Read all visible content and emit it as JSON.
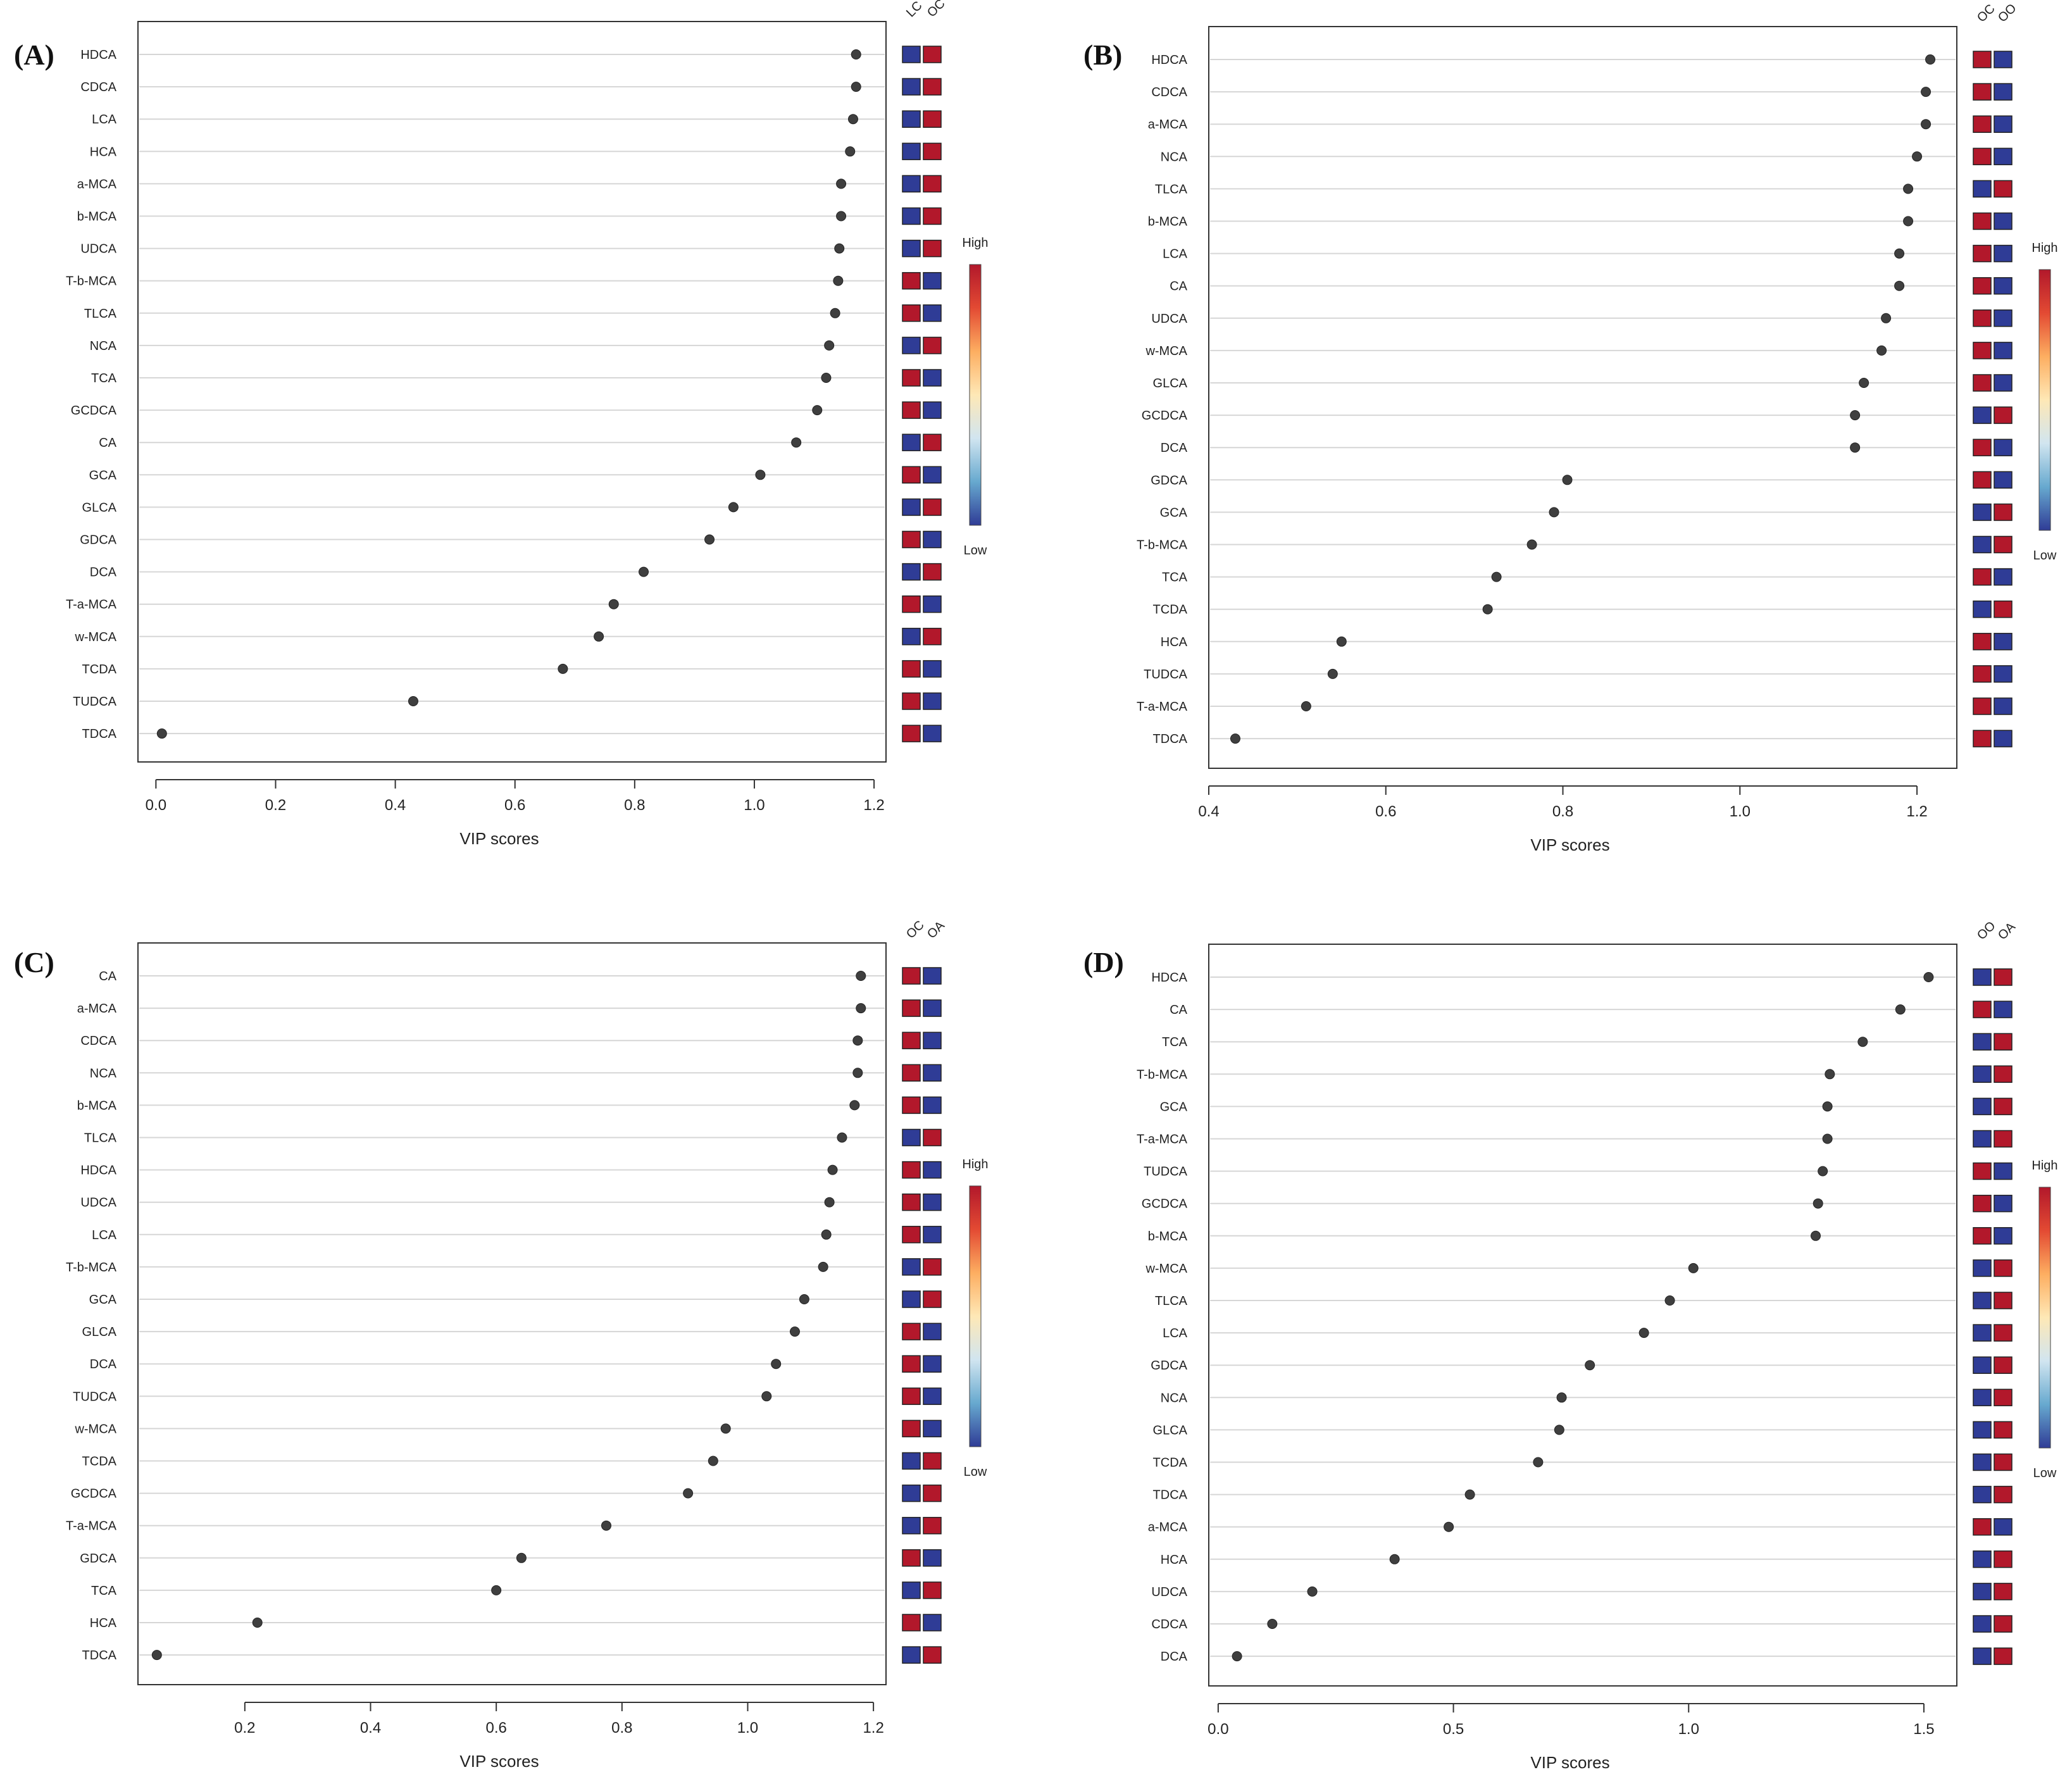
{
  "figure": {
    "x_axis_label": "VIP scores"
  },
  "colors": {
    "high": "#b2182b",
    "low": "#2f3c96",
    "point": "#3f3f3f",
    "grid": "#d6d6d6",
    "frame": "#333333"
  },
  "colorbar": {
    "high_label": "High",
    "low_label": "Low",
    "stops": [
      "#b2182b",
      "#e34a33",
      "#fdae61",
      "#fee8b6",
      "#d1e5f0",
      "#67a9cf",
      "#2f3c96"
    ]
  },
  "chart_data": [
    {
      "panel_label": "(A)",
      "type": "dot",
      "xlabel": "VIP scores",
      "xlim": [
        -0.03,
        1.22
      ],
      "xticks": [
        0.0,
        0.2,
        0.4,
        0.6,
        0.8,
        1.0,
        1.2
      ],
      "tick_labels": [
        "0.0",
        "0.2",
        "0.4",
        "0.6",
        "0.8",
        "1.0",
        "1.2"
      ],
      "groups": [
        "LC",
        "OC"
      ],
      "categories": [
        "HDCA",
        "CDCA",
        "LCA",
        "HCA",
        "a-MCA",
        "b-MCA",
        "UDCA",
        "T-b-MCA",
        "TLCA",
        "NCA",
        "TCA",
        "GCDCA",
        "CA",
        "GCA",
        "GLCA",
        "GDCA",
        "DCA",
        "T-a-MCA",
        "w-MCA",
        "TCDA",
        "TUDCA",
        "TDCA"
      ],
      "values": [
        1.17,
        1.17,
        1.165,
        1.16,
        1.145,
        1.145,
        1.142,
        1.14,
        1.135,
        1.125,
        1.12,
        1.105,
        1.07,
        1.01,
        0.965,
        0.925,
        0.815,
        0.765,
        0.74,
        0.68,
        0.43,
        0.01
      ],
      "heat": [
        [
          "L",
          "H"
        ],
        [
          "L",
          "H"
        ],
        [
          "L",
          "H"
        ],
        [
          "L",
          "H"
        ],
        [
          "L",
          "H"
        ],
        [
          "L",
          "H"
        ],
        [
          "L",
          "H"
        ],
        [
          "H",
          "L"
        ],
        [
          "H",
          "L"
        ],
        [
          "L",
          "H"
        ],
        [
          "H",
          "L"
        ],
        [
          "H",
          "L"
        ],
        [
          "L",
          "H"
        ],
        [
          "H",
          "L"
        ],
        [
          "L",
          "H"
        ],
        [
          "H",
          "L"
        ],
        [
          "L",
          "H"
        ],
        [
          "H",
          "L"
        ],
        [
          "L",
          "H"
        ],
        [
          "H",
          "L"
        ],
        [
          "H",
          "L"
        ],
        [
          "H",
          "L"
        ]
      ]
    },
    {
      "panel_label": "(B)",
      "type": "dot",
      "xlabel": "VIP scores",
      "xlim": [
        0.4,
        1.245
      ],
      "xticks": [
        0.4,
        0.6,
        0.8,
        1.0,
        1.2
      ],
      "tick_labels": [
        "0.4",
        "0.6",
        "0.8",
        "1.0",
        "1.2"
      ],
      "groups": [
        "OC",
        "OO"
      ],
      "categories": [
        "HDCA",
        "CDCA",
        "a-MCA",
        "NCA",
        "TLCA",
        "b-MCA",
        "LCA",
        "CA",
        "UDCA",
        "w-MCA",
        "GLCA",
        "GCDCA",
        "DCA",
        "GDCA",
        "GCA",
        "T-b-MCA",
        "TCA",
        "TCDA",
        "HCA",
        "TUDCA",
        "T-a-MCA",
        "TDCA"
      ],
      "values": [
        1.215,
        1.21,
        1.21,
        1.2,
        1.19,
        1.19,
        1.18,
        1.18,
        1.165,
        1.16,
        1.14,
        1.13,
        1.13,
        0.805,
        0.79,
        0.765,
        0.725,
        0.715,
        0.55,
        0.54,
        0.51,
        0.43
      ],
      "heat": [
        [
          "H",
          "L"
        ],
        [
          "H",
          "L"
        ],
        [
          "H",
          "L"
        ],
        [
          "H",
          "L"
        ],
        [
          "L",
          "H"
        ],
        [
          "H",
          "L"
        ],
        [
          "H",
          "L"
        ],
        [
          "H",
          "L"
        ],
        [
          "H",
          "L"
        ],
        [
          "H",
          "L"
        ],
        [
          "H",
          "L"
        ],
        [
          "L",
          "H"
        ],
        [
          "H",
          "L"
        ],
        [
          "H",
          "L"
        ],
        [
          "L",
          "H"
        ],
        [
          "L",
          "H"
        ],
        [
          "H",
          "L"
        ],
        [
          "L",
          "H"
        ],
        [
          "H",
          "L"
        ],
        [
          "H",
          "L"
        ],
        [
          "H",
          "L"
        ],
        [
          "H",
          "L"
        ]
      ]
    },
    {
      "panel_label": "(C)",
      "type": "dot",
      "xlabel": "VIP scores",
      "xlim": [
        0.03,
        1.22
      ],
      "xticks": [
        0.2,
        0.4,
        0.6,
        0.8,
        1.0,
        1.2
      ],
      "tick_labels": [
        "0.2",
        "0.4",
        "0.6",
        "0.8",
        "1.0",
        "1.2"
      ],
      "groups": [
        "OC",
        "OA"
      ],
      "categories": [
        "CA",
        "a-MCA",
        "CDCA",
        "NCA",
        "b-MCA",
        "TLCA",
        "HDCA",
        "UDCA",
        "LCA",
        "T-b-MCA",
        "GCA",
        "GLCA",
        "DCA",
        "TUDCA",
        "w-MCA",
        "TCDA",
        "GCDCA",
        "T-a-MCA",
        "GDCA",
        "TCA",
        "HCA",
        "TDCA"
      ],
      "values": [
        1.18,
        1.18,
        1.175,
        1.175,
        1.17,
        1.15,
        1.135,
        1.13,
        1.125,
        1.12,
        1.09,
        1.075,
        1.045,
        1.03,
        0.965,
        0.945,
        0.905,
        0.775,
        0.64,
        0.6,
        0.22,
        0.06
      ],
      "heat": [
        [
          "H",
          "L"
        ],
        [
          "H",
          "L"
        ],
        [
          "H",
          "L"
        ],
        [
          "H",
          "L"
        ],
        [
          "H",
          "L"
        ],
        [
          "L",
          "H"
        ],
        [
          "H",
          "L"
        ],
        [
          "H",
          "L"
        ],
        [
          "H",
          "L"
        ],
        [
          "L",
          "H"
        ],
        [
          "L",
          "H"
        ],
        [
          "H",
          "L"
        ],
        [
          "H",
          "L"
        ],
        [
          "H",
          "L"
        ],
        [
          "H",
          "L"
        ],
        [
          "L",
          "H"
        ],
        [
          "L",
          "H"
        ],
        [
          "L",
          "H"
        ],
        [
          "H",
          "L"
        ],
        [
          "L",
          "H"
        ],
        [
          "H",
          "L"
        ],
        [
          "L",
          "H"
        ]
      ]
    },
    {
      "panel_label": "(D)",
      "type": "dot",
      "xlabel": "VIP scores",
      "xlim": [
        -0.02,
        1.57
      ],
      "xticks": [
        0.0,
        0.5,
        1.0,
        1.5
      ],
      "tick_labels": [
        "0.0",
        "0.5",
        "1.0",
        "1.5"
      ],
      "groups": [
        "OO",
        "OA"
      ],
      "categories": [
        "HDCA",
        "CA",
        "TCA",
        "T-b-MCA",
        "GCA",
        "T-a-MCA",
        "TUDCA",
        "GCDCA",
        "b-MCA",
        "w-MCA",
        "TLCA",
        "LCA",
        "GDCA",
        "NCA",
        "GLCA",
        "TCDA",
        "TDCA",
        "a-MCA",
        "HCA",
        "UDCA",
        "CDCA",
        "DCA"
      ],
      "values": [
        1.51,
        1.45,
        1.37,
        1.3,
        1.295,
        1.295,
        1.285,
        1.275,
        1.27,
        1.01,
        0.96,
        0.905,
        0.79,
        0.73,
        0.725,
        0.68,
        0.535,
        0.49,
        0.375,
        0.2,
        0.115,
        0.04
      ],
      "heat": [
        [
          "L",
          "H"
        ],
        [
          "H",
          "L"
        ],
        [
          "L",
          "H"
        ],
        [
          "L",
          "H"
        ],
        [
          "L",
          "H"
        ],
        [
          "L",
          "H"
        ],
        [
          "H",
          "L"
        ],
        [
          "H",
          "L"
        ],
        [
          "H",
          "L"
        ],
        [
          "L",
          "H"
        ],
        [
          "L",
          "H"
        ],
        [
          "L",
          "H"
        ],
        [
          "L",
          "H"
        ],
        [
          "L",
          "H"
        ],
        [
          "L",
          "H"
        ],
        [
          "L",
          "H"
        ],
        [
          "L",
          "H"
        ],
        [
          "H",
          "L"
        ],
        [
          "L",
          "H"
        ],
        [
          "L",
          "H"
        ],
        [
          "L",
          "H"
        ],
        [
          "L",
          "H"
        ]
      ]
    }
  ]
}
